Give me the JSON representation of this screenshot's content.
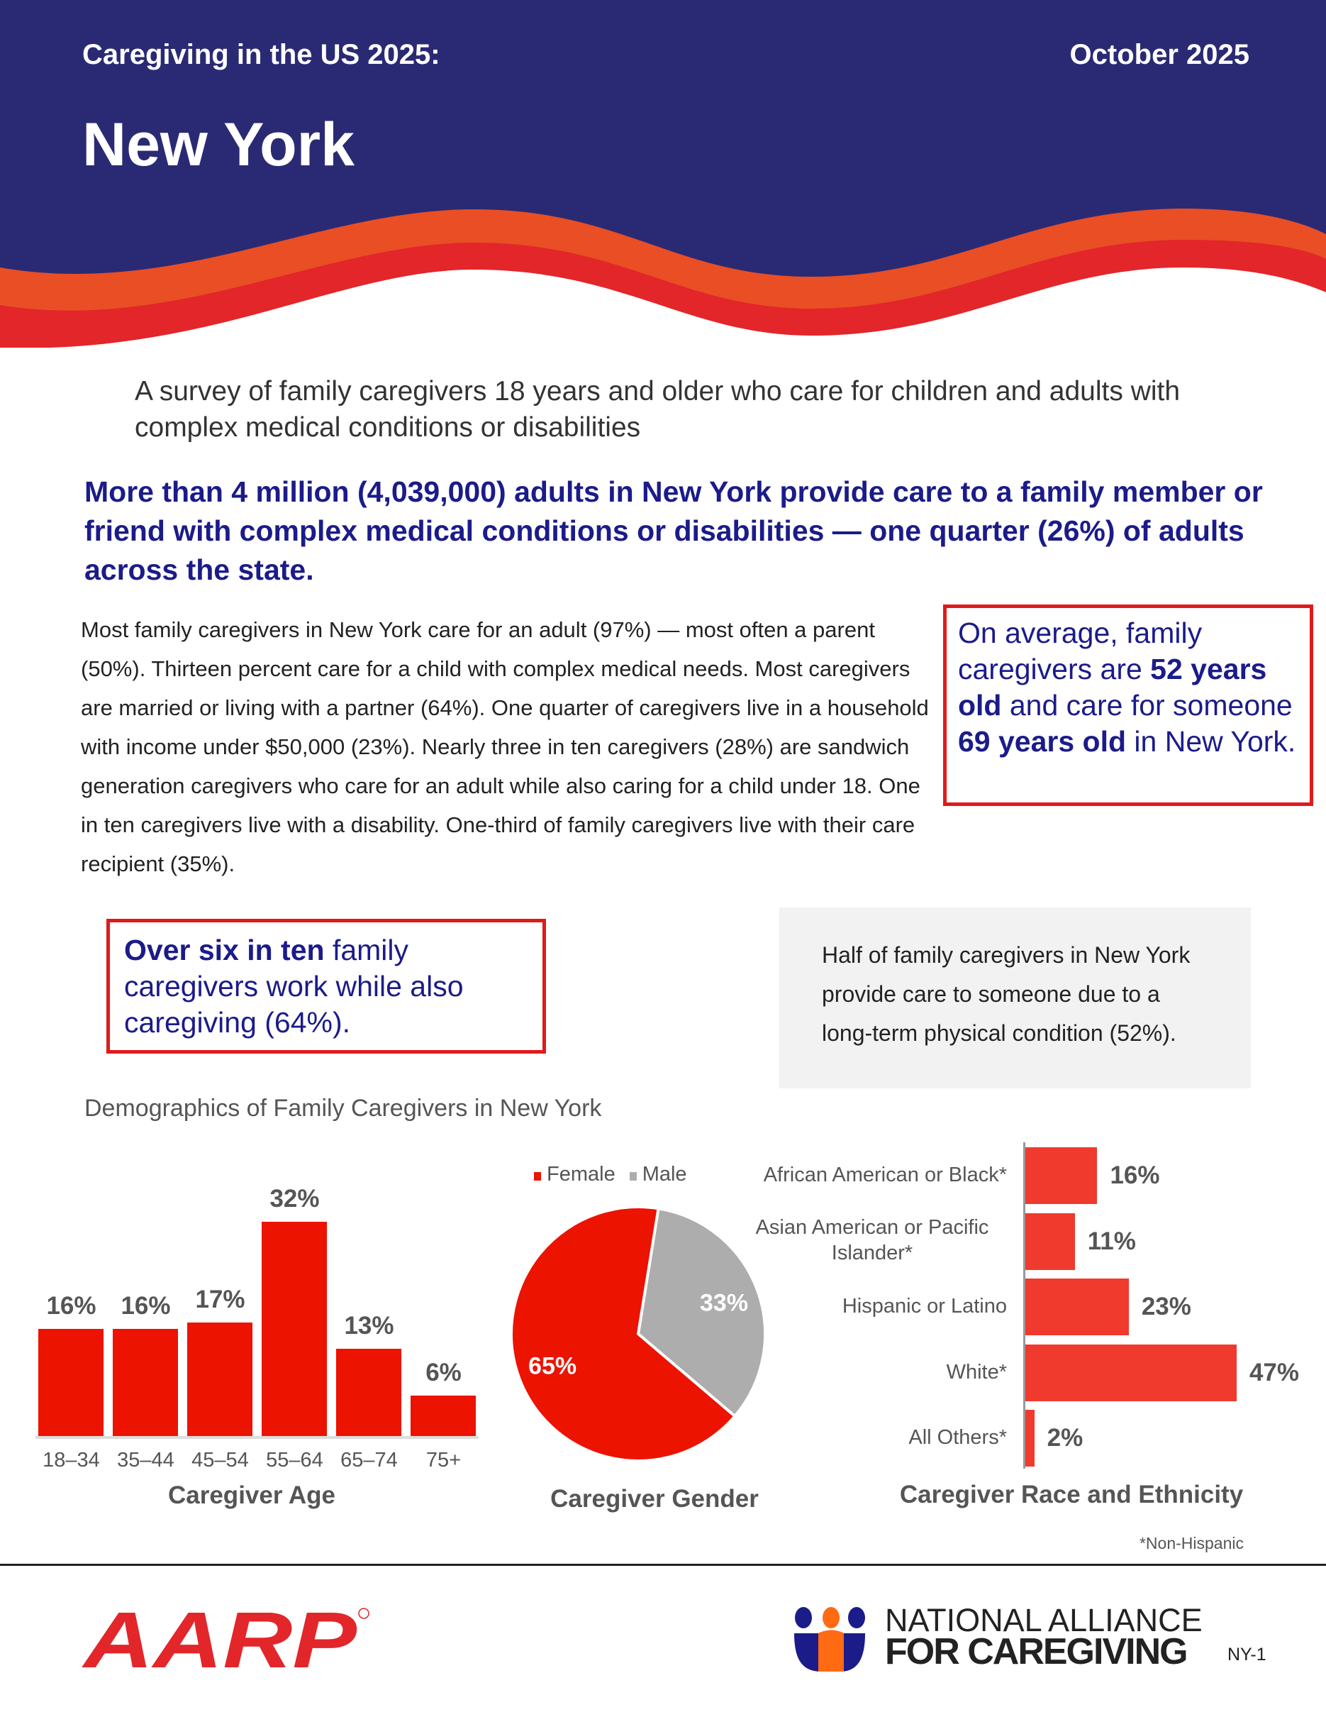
{
  "header": {
    "subtitle": "Caregiving in the US 2025:",
    "date": "October 2025",
    "title": "New York"
  },
  "colors": {
    "navy": "#2a2a74",
    "orange": "#e94e24",
    "red": "#e2262a",
    "bar_red": "#ec1300",
    "race_red": "#ef3a2d",
    "gray": "#adadad",
    "headline_blue": "#1b1b8a"
  },
  "intro": "A survey of family caregivers 18 years and older who care for children and adults with complex medical conditions or disabilities",
  "headline": "More than 4 million (4,039,000) adults in New York provide care to a family member or friend with complex medical conditions or disabilities — one quarter (26%) of adults across the state.",
  "body": "Most family caregivers in New York care for an adult (97%) — most often a parent (50%). Thirteen percent care for a child with complex medical needs. Most caregivers are married or living with a partner (64%). One quarter of caregivers live in a household with income under $50,000 (23%). Nearly three in ten caregivers (28%) are sandwich generation caregivers who care for an adult while also caring for a child under 18. One in ten caregivers live with a disability. One-third of family caregivers live with their care recipient (35%).",
  "age_box": {
    "p1": "On average, family caregivers are ",
    "b1": "52 years old",
    "p2": " and care for someone ",
    "b2": "69 years old",
    "p3": " in New York."
  },
  "work_box": {
    "b1": "Over six in ten",
    "p1": " family caregivers work while also caregiving (64%)."
  },
  "condition_box": "Half of family caregivers in New York provide care to someone due to a long-term physical condition (52%).",
  "demographics_title": "Demographics of Family Caregivers in New York",
  "chart_data": [
    {
      "type": "bar",
      "title": "Caregiver Age",
      "categories": [
        "18–34",
        "35–44",
        "45–54",
        "55–64",
        "65–74",
        "75+"
      ],
      "values": [
        16,
        16,
        17,
        32,
        13,
        6
      ],
      "labels": [
        "16%",
        "16%",
        "17%",
        "32%",
        "13%",
        "6%"
      ],
      "unit": "%"
    },
    {
      "type": "pie",
      "title": "Caregiver Gender",
      "series": [
        {
          "name": "Female",
          "value": 65,
          "label": "65%"
        },
        {
          "name": "Male",
          "value": 33,
          "label": "33%"
        }
      ]
    },
    {
      "type": "bar",
      "orientation": "horizontal",
      "title": "Caregiver Race and Ethnicity",
      "categories": [
        "African American or Black*",
        "Asian American or Pacific Islander*",
        "Hispanic or Latino",
        "White*",
        "All Others*"
      ],
      "values": [
        16,
        11,
        23,
        47,
        2
      ],
      "labels": [
        "16%",
        "11%",
        "23%",
        "47%",
        "2%"
      ],
      "footnote": "*Non-Hispanic"
    }
  ],
  "footer": {
    "aarp_logo": "AARP",
    "nac_logo_line1": "NATIONAL ALLIANCE",
    "nac_logo_line2": "FOR CAREGIVING",
    "page_id": "NY-1"
  }
}
